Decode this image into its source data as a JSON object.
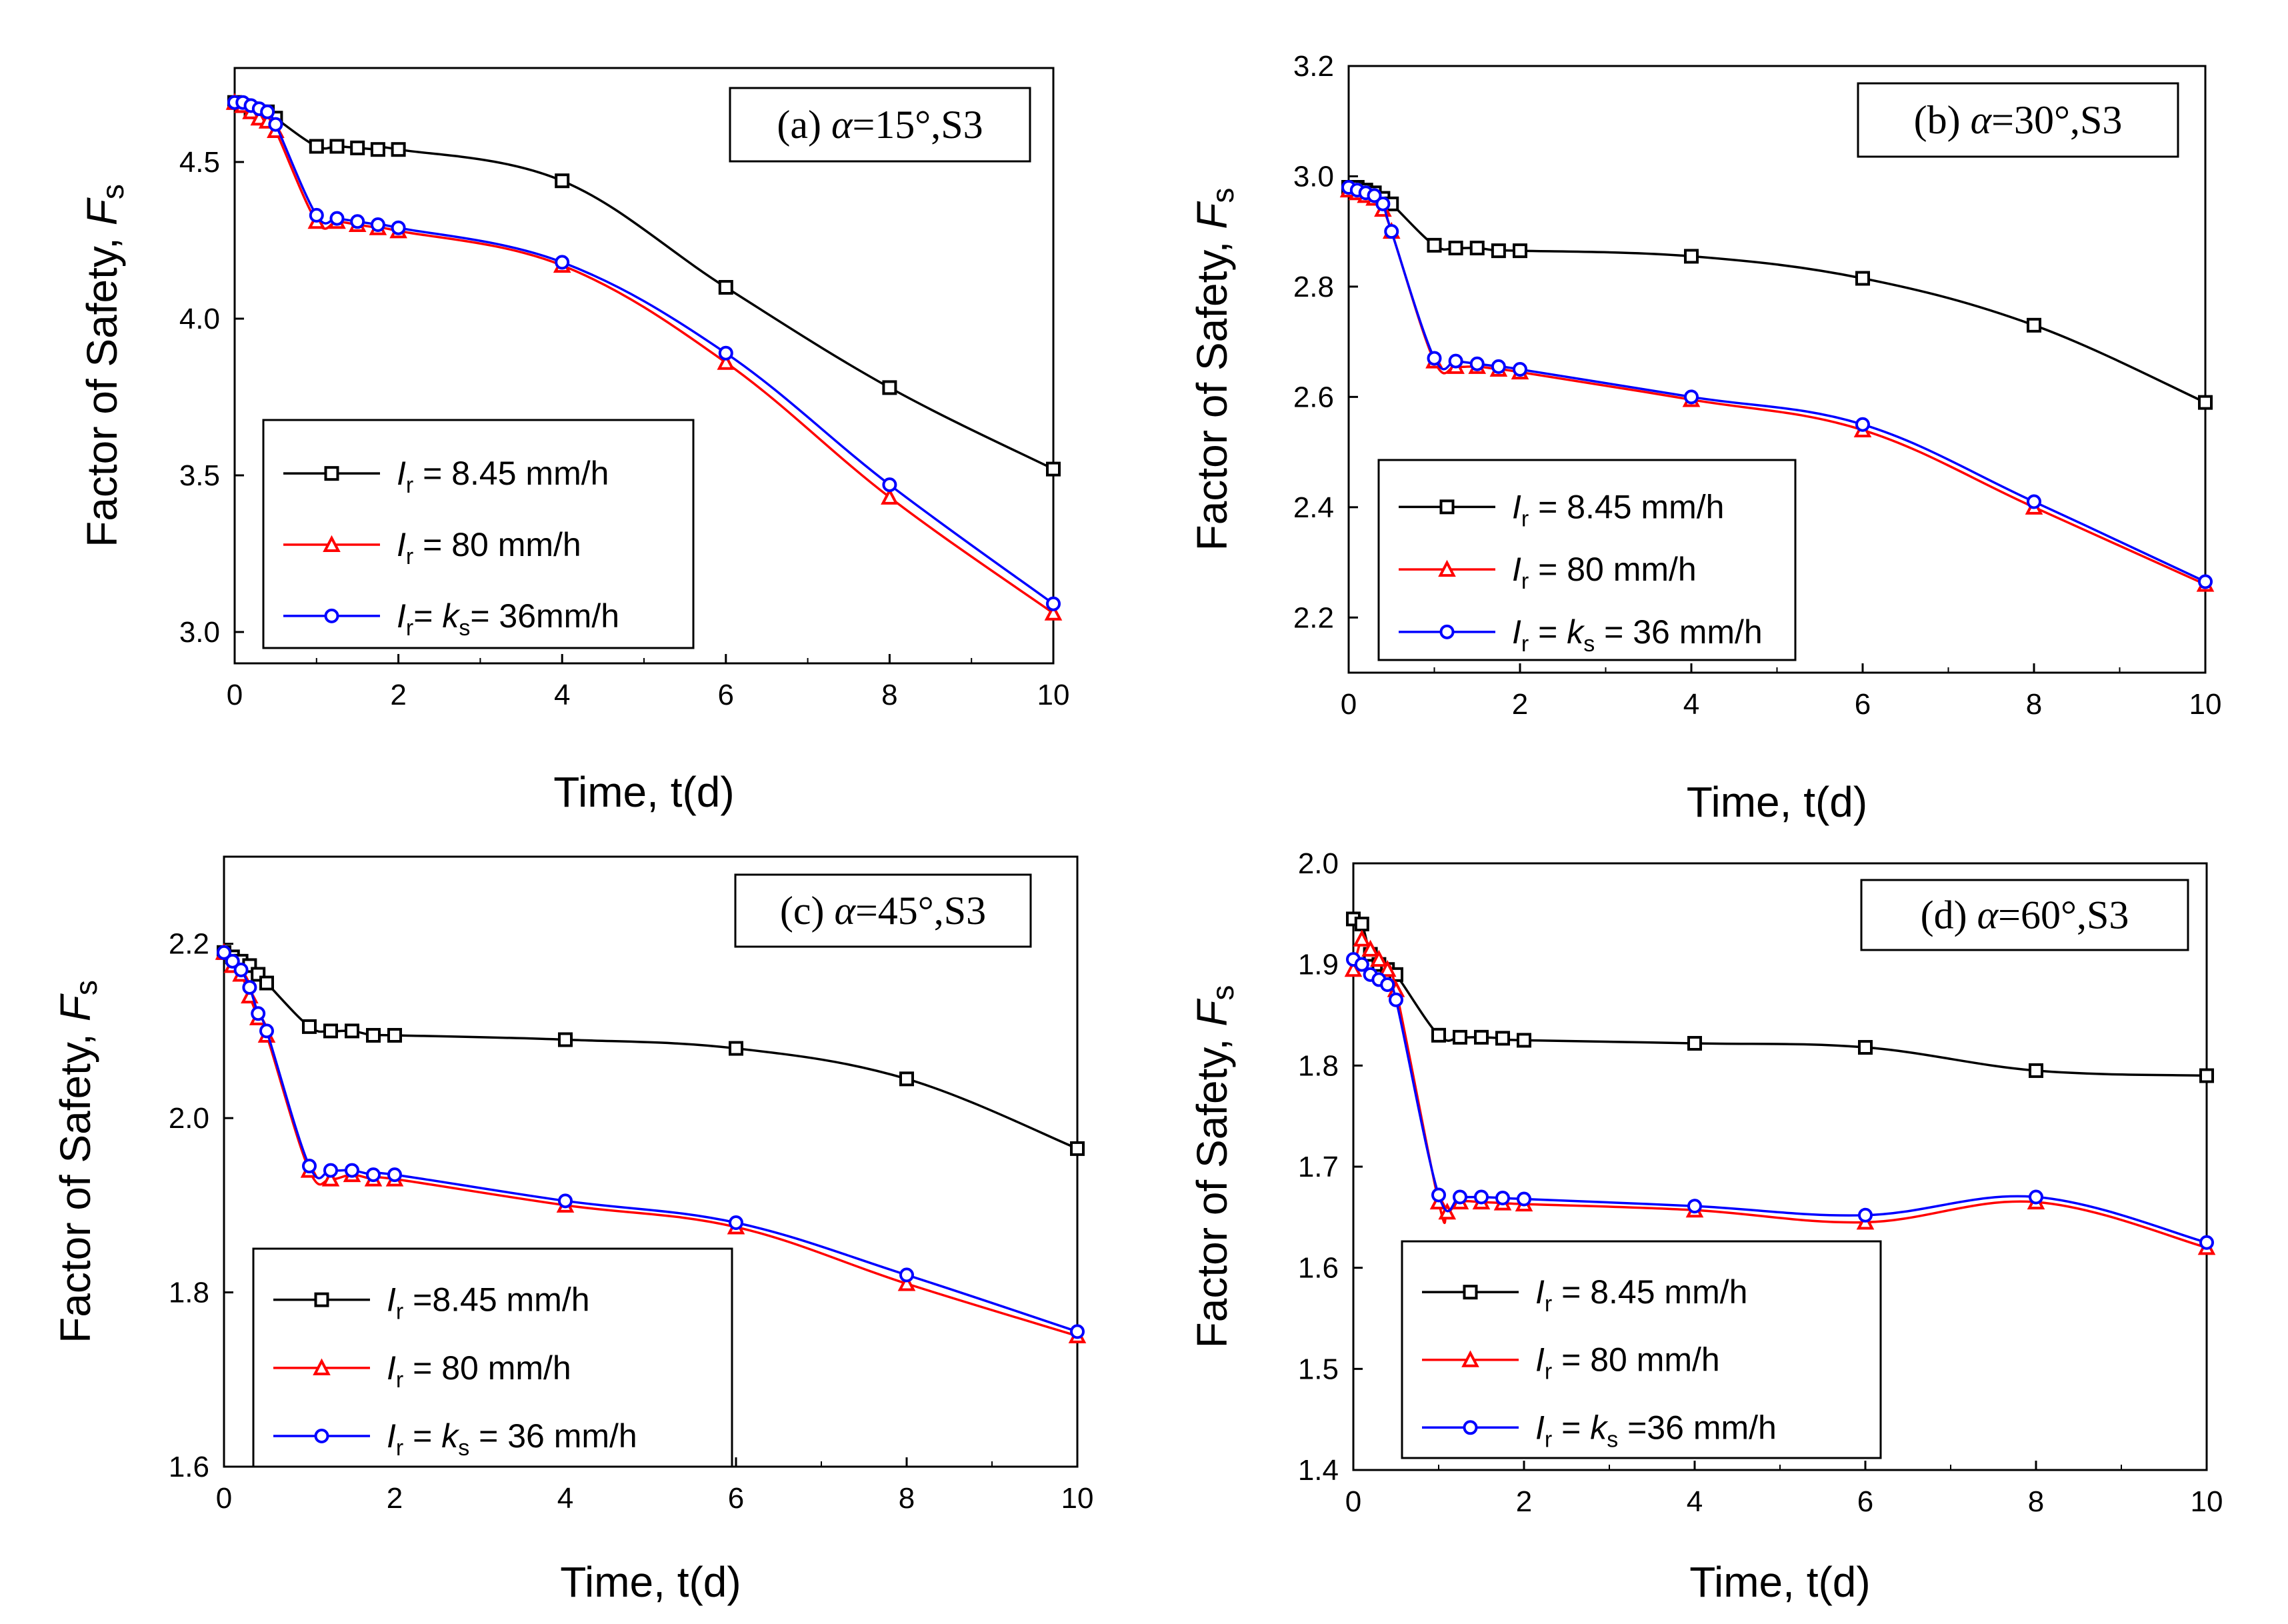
{
  "chart_data": [
    {
      "type": "line",
      "panel": "(a)",
      "title": "(a)  α=15°,S3",
      "xlabel": "Time, t(d)",
      "ylabel": "Factor of Safety, Fs",
      "xlim": [
        0,
        10
      ],
      "ylim": [
        2.9,
        4.8
      ],
      "xticks": [
        0,
        2,
        4,
        6,
        8,
        10
      ],
      "yticks": [
        3.0,
        3.5,
        4.0,
        4.5
      ],
      "ytick_labels": [
        "3.0",
        "3.5",
        "4.0",
        "4.5"
      ],
      "legend_placement": "lower-left",
      "series": [
        {
          "name": "Ir = 8.45 mm/h",
          "color": "#000000",
          "marker": "square",
          "x": [
            0,
            0.1,
            0.2,
            0.3,
            0.4,
            0.5,
            1.0,
            1.25,
            1.5,
            1.75,
            2.0,
            4.0,
            6.0,
            8.0,
            10.0
          ],
          "y": [
            4.69,
            4.68,
            4.67,
            4.66,
            4.66,
            4.64,
            4.55,
            4.55,
            4.545,
            4.54,
            4.54,
            4.44,
            4.1,
            3.78,
            3.52
          ]
        },
        {
          "name": "Ir = 80 mm/h",
          "color": "#ff0000",
          "marker": "triangle",
          "x": [
            0,
            0.1,
            0.2,
            0.3,
            0.4,
            0.5,
            1.0,
            1.25,
            1.5,
            1.75,
            2.0,
            4.0,
            6.0,
            8.0,
            10.0
          ],
          "y": [
            4.69,
            4.68,
            4.66,
            4.64,
            4.63,
            4.6,
            4.31,
            4.31,
            4.3,
            4.29,
            4.28,
            4.17,
            3.86,
            3.43,
            3.06
          ]
        },
        {
          "name": "Ir= ks= 36mm/h",
          "color": "#0000ff",
          "marker": "circle",
          "x": [
            0,
            0.1,
            0.2,
            0.3,
            0.4,
            0.5,
            1.0,
            1.25,
            1.5,
            1.75,
            2.0,
            4.0,
            6.0,
            8.0,
            10.0
          ],
          "y": [
            4.69,
            4.69,
            4.68,
            4.67,
            4.66,
            4.62,
            4.33,
            4.32,
            4.31,
            4.3,
            4.29,
            4.18,
            3.89,
            3.47,
            3.09
          ]
        }
      ],
      "legend": [
        {
          "pre": "I",
          "sub": "r",
          "post": " = 8.45 mm/h"
        },
        {
          "pre": "I",
          "sub": "r",
          "post": " = 80 mm/h"
        },
        {
          "pre": "I",
          "sub": "r",
          "mid": "= ",
          "mid_i": "k",
          "mid_sub": "s",
          "post": "= 36mm/h"
        }
      ]
    },
    {
      "type": "line",
      "panel": "(b)",
      "title": "(b)  α=30°,S3",
      "xlabel": "Time, t(d)",
      "ylabel": "Factor of Safety, Fs",
      "xlim": [
        0,
        10
      ],
      "ylim": [
        2.1,
        3.2
      ],
      "xticks": [
        0,
        2,
        4,
        6,
        8,
        10
      ],
      "yticks": [
        2.2,
        2.4,
        2.6,
        2.8,
        3.0,
        3.2
      ],
      "ytick_labels": [
        "2.2",
        "2.4",
        "2.6",
        "2.8",
        "3.0",
        "3.2"
      ],
      "legend_placement": "lower-left",
      "series": [
        {
          "name": "Ir = 8.45 mm/h",
          "color": "#000000",
          "marker": "square",
          "x": [
            0,
            0.1,
            0.2,
            0.3,
            0.4,
            0.5,
            1.0,
            1.25,
            1.5,
            1.75,
            2.0,
            4.0,
            6.0,
            8.0,
            10.0
          ],
          "y": [
            2.98,
            2.98,
            2.975,
            2.97,
            2.96,
            2.95,
            2.875,
            2.87,
            2.87,
            2.865,
            2.865,
            2.855,
            2.815,
            2.73,
            2.59
          ]
        },
        {
          "name": "Ir = 80 mm/h",
          "color": "#ff0000",
          "marker": "triangle",
          "x": [
            0,
            0.1,
            0.2,
            0.3,
            0.4,
            0.5,
            1.0,
            1.25,
            1.5,
            1.75,
            2.0,
            4.0,
            6.0,
            8.0,
            10.0
          ],
          "y": [
            2.975,
            2.97,
            2.965,
            2.96,
            2.94,
            2.9,
            2.665,
            2.655,
            2.655,
            2.65,
            2.645,
            2.595,
            2.54,
            2.4,
            2.26
          ]
        },
        {
          "name": "Ir = ks = 36 mm/h",
          "color": "#0000ff",
          "marker": "circle",
          "x": [
            0,
            0.1,
            0.2,
            0.3,
            0.4,
            0.5,
            1.0,
            1.25,
            1.5,
            1.75,
            2.0,
            4.0,
            6.0,
            8.0,
            10.0
          ],
          "y": [
            2.98,
            2.975,
            2.97,
            2.965,
            2.95,
            2.9,
            2.67,
            2.665,
            2.66,
            2.655,
            2.65,
            2.6,
            2.55,
            2.41,
            2.265
          ]
        }
      ],
      "legend": [
        {
          "pre": "I",
          "sub": "r",
          "post": " = 8.45 mm/h"
        },
        {
          "pre": "I",
          "sub": "r",
          "post": " = 80 mm/h"
        },
        {
          "pre": "I",
          "sub": "r",
          "mid": " = ",
          "mid_i": "k",
          "mid_sub": "s",
          "post": " = 36 mm/h"
        }
      ]
    },
    {
      "type": "line",
      "panel": "(c)",
      "title": "(c)  α=45°,S3",
      "xlabel": "Time, t(d)",
      "ylabel": "Factor of Safety, Fs",
      "xlim": [
        0,
        10
      ],
      "ylim": [
        1.6,
        2.3
      ],
      "xticks": [
        0,
        2,
        4,
        6,
        8,
        10
      ],
      "yticks": [
        1.6,
        1.8,
        2.0,
        2.2
      ],
      "ytick_labels": [
        "1.6",
        "1.8",
        "2.0",
        "2.2"
      ],
      "legend_placement": "lower-left",
      "series": [
        {
          "name": "Ir =8.45 mm/h",
          "color": "#000000",
          "marker": "square",
          "x": [
            0,
            0.1,
            0.2,
            0.3,
            0.4,
            0.5,
            1.0,
            1.25,
            1.5,
            1.75,
            2.0,
            4.0,
            6.0,
            8.0,
            10.0
          ],
          "y": [
            2.19,
            2.185,
            2.18,
            2.175,
            2.165,
            2.155,
            2.105,
            2.1,
            2.1,
            2.095,
            2.095,
            2.09,
            2.08,
            2.045,
            1.965
          ]
        },
        {
          "name": "Ir = 80 mm/h",
          "color": "#ff0000",
          "marker": "triangle",
          "x": [
            0,
            0.1,
            0.2,
            0.3,
            0.4,
            0.5,
            1.0,
            1.25,
            1.5,
            1.75,
            2.0,
            4.0,
            6.0,
            8.0,
            10.0
          ],
          "y": [
            2.19,
            2.175,
            2.165,
            2.14,
            2.115,
            2.095,
            1.94,
            1.93,
            1.935,
            1.93,
            1.93,
            1.9,
            1.875,
            1.81,
            1.75
          ]
        },
        {
          "name": "Ir = ks = 36 mm/h",
          "color": "#0000ff",
          "marker": "circle",
          "x": [
            0,
            0.1,
            0.2,
            0.3,
            0.4,
            0.5,
            1.0,
            1.25,
            1.5,
            1.75,
            2.0,
            4.0,
            6.0,
            8.0,
            10.0
          ],
          "y": [
            2.19,
            2.18,
            2.17,
            2.15,
            2.12,
            2.1,
            1.945,
            1.94,
            1.94,
            1.935,
            1.935,
            1.905,
            1.88,
            1.82,
            1.755
          ]
        }
      ],
      "legend": [
        {
          "pre": "I",
          "sub": "r",
          "post": " =8.45 mm/h"
        },
        {
          "pre": "I",
          "sub": "r",
          "post": " = 80 mm/h"
        },
        {
          "pre": "I",
          "sub": "r",
          "mid": " = ",
          "mid_i": "k",
          "mid_sub": "s",
          "post": " = 36 mm/h"
        }
      ]
    },
    {
      "type": "line",
      "panel": "(d)",
      "title": "(d)  α=60°,S3",
      "xlabel": "Time, t(d)",
      "ylabel": "Factor of Safety, Fs",
      "xlim": [
        0,
        10
      ],
      "ylim": [
        1.4,
        2.0
      ],
      "xticks": [
        0,
        2,
        4,
        6,
        8,
        10
      ],
      "yticks": [
        1.4,
        1.5,
        1.6,
        1.7,
        1.8,
        1.9,
        2.0
      ],
      "ytick_labels": [
        "1.4",
        "1.5",
        "1.6",
        "1.7",
        "1.8",
        "1.9",
        "2.0"
      ],
      "legend_placement": "lower-left",
      "series": [
        {
          "name": "Ir = 8.45 mm/h",
          "color": "#000000",
          "marker": "square",
          "x": [
            0,
            0.1,
            0.2,
            0.3,
            0.4,
            0.5,
            1.0,
            1.25,
            1.5,
            1.75,
            2.0,
            4.0,
            6.0,
            8.0,
            10.0
          ],
          "y": [
            1.945,
            1.94,
            1.91,
            1.9,
            1.895,
            1.89,
            1.83,
            1.828,
            1.828,
            1.827,
            1.825,
            1.822,
            1.818,
            1.795,
            1.79
          ]
        },
        {
          "name": "Ir = 80 mm/h",
          "color": "#ff0000",
          "marker": "triangle",
          "x": [
            0,
            0.1,
            0.2,
            0.3,
            0.4,
            0.5,
            1.0,
            1.1,
            1.25,
            1.5,
            1.75,
            2.0,
            4.0,
            6.0,
            8.0,
            10.0
          ],
          "y": [
            1.895,
            1.925,
            1.915,
            1.905,
            1.895,
            1.875,
            1.665,
            1.655,
            1.665,
            1.665,
            1.664,
            1.663,
            1.657,
            1.645,
            1.665,
            1.62
          ]
        },
        {
          "name": "Ir = ks =36 mm/h",
          "color": "#0000ff",
          "marker": "circle",
          "x": [
            0,
            0.1,
            0.2,
            0.3,
            0.4,
            0.5,
            1.0,
            1.25,
            1.5,
            1.75,
            2.0,
            4.0,
            6.0,
            8.0,
            10.0
          ],
          "y": [
            1.905,
            1.9,
            1.89,
            1.885,
            1.88,
            1.865,
            1.672,
            1.67,
            1.67,
            1.669,
            1.668,
            1.661,
            1.652,
            1.67,
            1.625
          ]
        }
      ],
      "legend": [
        {
          "pre": "I",
          "sub": "r",
          "post": " = 8.45 mm/h"
        },
        {
          "pre": "I",
          "sub": "r",
          "post": " = 80 mm/h"
        },
        {
          "pre": "I",
          "sub": "r",
          "mid": " = ",
          "mid_i": "k",
          "mid_sub": "s",
          "post": " =36 mm/h"
        }
      ]
    }
  ]
}
